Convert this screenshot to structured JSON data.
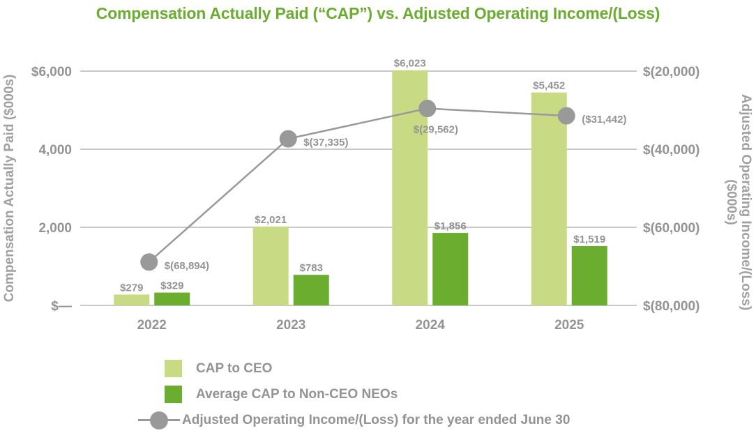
{
  "chart_data": {
    "type": "bar",
    "title": "Compensation Actually Paid (“CAP”) vs. Adjusted Operating Income/(Loss)",
    "categories": [
      "2022",
      "2023",
      "2024",
      "2025"
    ],
    "series": [
      {
        "name": "CAP to CEO",
        "type": "bar",
        "axis": "left",
        "color": "#c9da84",
        "values": [
          279,
          2021,
          6023,
          5452
        ],
        "labels": [
          "$279",
          "$2,021",
          "$6,023",
          "$5,452"
        ]
      },
      {
        "name": "Average CAP to Non-CEO NEOs",
        "type": "bar",
        "axis": "left",
        "color": "#6aad2f",
        "values": [
          329,
          783,
          1856,
          1519
        ],
        "labels": [
          "$329",
          "$783",
          "$1,856",
          "$1,519"
        ]
      },
      {
        "name": "Adjusted Operating Income/(Loss) for the year ended June 30",
        "type": "line",
        "axis": "right",
        "color": "#999999",
        "values": [
          -68894,
          -37335,
          -29562,
          -31442
        ],
        "labels": [
          "$(68,894)",
          "$(37,335)",
          "$(29,562)",
          "($31,442)"
        ]
      }
    ],
    "ylabel": "Compensation Actually Paid ($000s)",
    "ylim": [
      0,
      6000
    ],
    "yticks": [
      0,
      2000,
      4000,
      6000
    ],
    "ytick_labels": [
      "$—",
      "2,000",
      "4,000",
      "$6,000"
    ],
    "y2label_line1": "Adjusted Operating Income/(Loss)",
    "y2label_line2": "($000s)",
    "y2lim": [
      -80000,
      -20000
    ],
    "y2ticks": [
      -80000,
      -60000,
      -40000,
      -20000
    ],
    "y2tick_labels": [
      "$(80,000)",
      "$(60,000)",
      "$(40,000)",
      "$(20,000)"
    ],
    "grid": true,
    "legend_position": "bottom"
  },
  "legend": {
    "ceo": "CAP to CEO",
    "neo": "Average CAP to Non-CEO NEOs",
    "line": "Adjusted Operating Income/(Loss) for the year ended June 30"
  }
}
